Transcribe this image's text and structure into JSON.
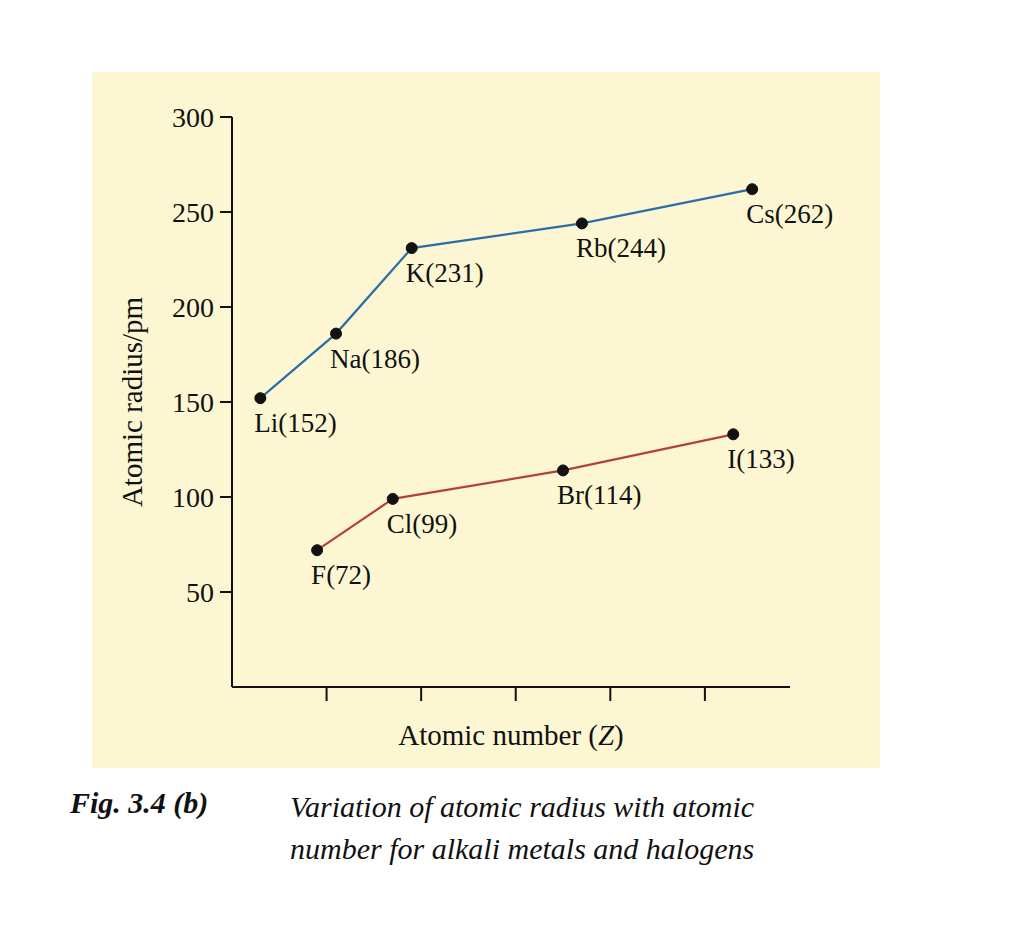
{
  "chart_data": {
    "type": "line",
    "title": "Fig. 3.4 (b)",
    "subtitle": "Variation of atomic radius with atomic number for alkali metals and halogens",
    "x_label": "Atomic number (Z)",
    "y_label": "Atomic radius/pm",
    "xlim": [
      0,
      59
    ],
    "xticks": [
      10,
      20,
      30,
      40,
      50
    ],
    "ylim": [
      0,
      300
    ],
    "yticks": [
      50,
      100,
      150,
      200,
      250,
      300
    ],
    "tick_labels": "y",
    "grid": false,
    "data_labels": true,
    "series": [
      {
        "color": "#2b6ea6",
        "marker": "circle",
        "x": [
          3,
          11,
          19,
          37,
          55
        ],
        "values": [
          152,
          186,
          231,
          244,
          262
        ],
        "value_labels": [
          "Li(152)",
          "Na(186)",
          "K(231)",
          "Rb(244)",
          "Cs(262)"
        ]
      },
      {
        "color": "#b5403a",
        "marker": "circle",
        "x": [
          9,
          17,
          35,
          53
        ],
        "values": [
          72,
          99,
          114,
          133
        ],
        "value_labels": [
          "F(72)",
          "Cl(99)",
          "Br(114)",
          "I(133)"
        ]
      }
    ]
  }
}
